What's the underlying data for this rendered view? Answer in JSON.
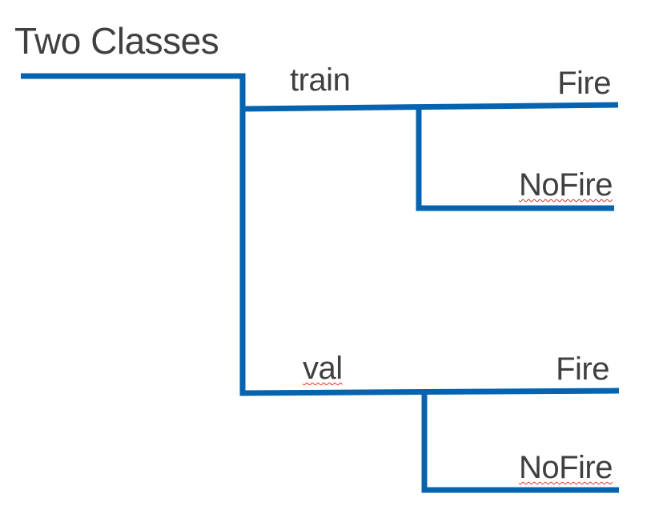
{
  "diagram": {
    "title": "Two Classes",
    "line_color": "#0563b0",
    "text_color": "#404040",
    "branches": [
      {
        "label": "train",
        "leaves": [
          "Fire",
          "NoFire"
        ]
      },
      {
        "label": "val",
        "leaves": [
          "Fire",
          "NoFire"
        ]
      }
    ]
  }
}
